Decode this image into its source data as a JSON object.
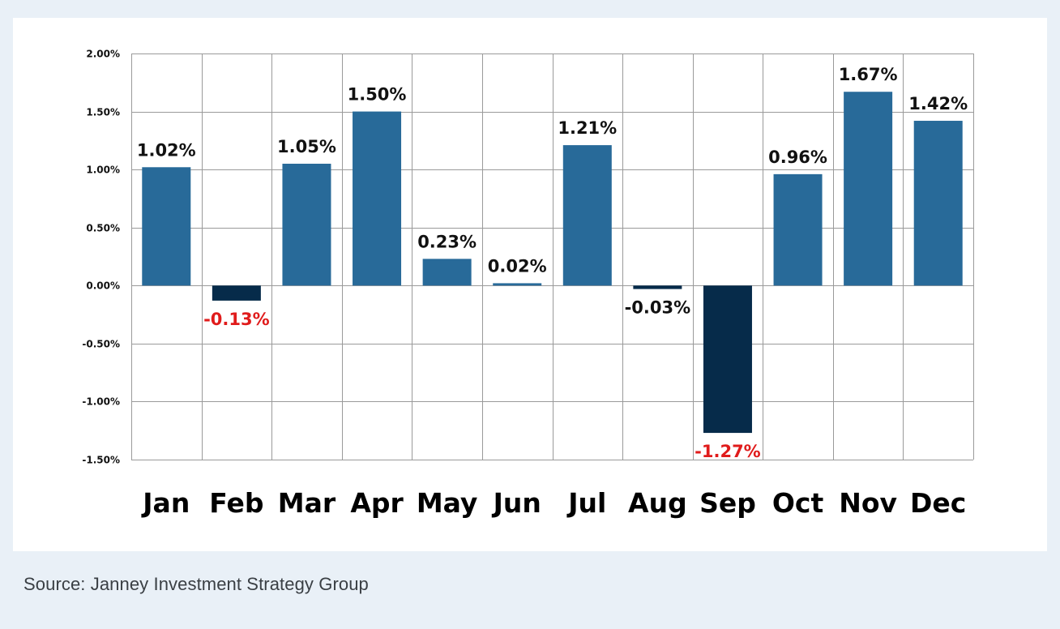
{
  "chart_data": {
    "type": "bar",
    "categories": [
      "Jan",
      "Feb",
      "Mar",
      "Apr",
      "May",
      "Jun",
      "Jul",
      "Aug",
      "Sep",
      "Oct",
      "Nov",
      "Dec"
    ],
    "values": [
      1.02,
      -0.13,
      1.05,
      1.5,
      0.23,
      0.02,
      1.21,
      -0.03,
      -1.27,
      0.96,
      1.67,
      1.42
    ],
    "value_labels": [
      "1.02%",
      "-0.13%",
      "1.05%",
      "1.50%",
      "0.23%",
      "0.02%",
      "1.21%",
      "-0.03%",
      "-1.27%",
      "0.96%",
      "1.67%",
      "1.42%"
    ],
    "y_ticks": [
      2.0,
      1.5,
      1.0,
      0.5,
      0.0,
      -0.5,
      -1.0,
      -1.5
    ],
    "y_tick_labels": [
      "2.00%",
      "1.50%",
      "1.00%",
      "0.50%",
      "0.00%",
      "-0.50%",
      "-1.00%",
      "-1.50%"
    ],
    "ylim": [
      -1.5,
      2.0
    ],
    "grid": true,
    "colors": {
      "positive_bar": "#286a99",
      "negative_bar": "#062b4a",
      "positive_label": "#111111",
      "negative_label_emphasis": "#e01b1b",
      "grid": "#9a9a9a"
    },
    "label_colors": [
      "#111111",
      "#e01b1b",
      "#111111",
      "#111111",
      "#111111",
      "#111111",
      "#111111",
      "#111111",
      "#e01b1b",
      "#111111",
      "#111111",
      "#111111"
    ]
  },
  "footer": {
    "source": "Source: Janney Investment Strategy Group"
  }
}
